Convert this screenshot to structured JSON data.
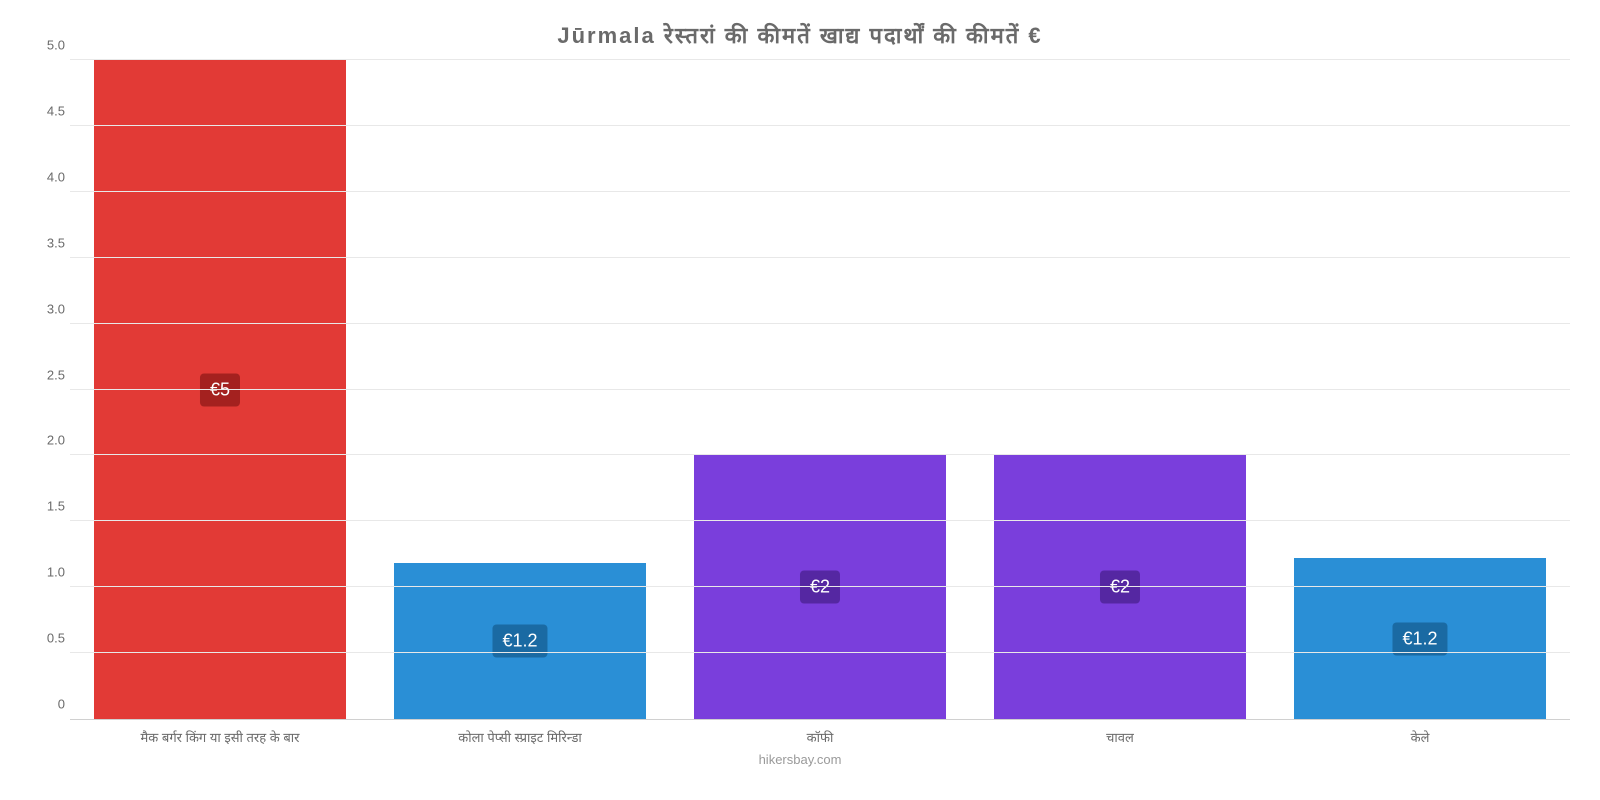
{
  "chart": {
    "type": "bar",
    "title": "Jūrmala रेस्तरां की कीमतें खाद्य पदार्थों की कीमतें €",
    "title_fontsize": 22,
    "title_color": "#6a6a6a",
    "background_color": "#ffffff",
    "grid_color": "#e8e8e8",
    "axis_text_color": "#6a6a6a",
    "ylim": [
      0,
      5.0
    ],
    "ytick_step": 0.5,
    "yticks": [
      "0",
      "0.5",
      "1.0",
      "1.5",
      "2.0",
      "2.5",
      "3.0",
      "3.5",
      "4.0",
      "4.5",
      "5.0"
    ],
    "bar_width_pct": 84,
    "categories": [
      "मैक बर्गर किंग या इसी तरह के बार",
      "कोला पेप्सी स्प्राइट मिरिन्डा",
      "कॉफी",
      "चावल",
      "केले"
    ],
    "values": [
      5.0,
      1.18,
      2.0,
      2.0,
      1.22
    ],
    "value_labels": [
      "€5",
      "€1.2",
      "€2",
      "€2",
      "€1.2"
    ],
    "bar_colors": [
      "#e23a36",
      "#2a8fd6",
      "#7a3edc",
      "#7a3edc",
      "#2a8fd6"
    ],
    "label_bg_colors": [
      "#a4211f",
      "#1a6aa3",
      "#5527a2",
      "#5527a2",
      "#1a6aa3"
    ],
    "label_fontsize": 18,
    "xlabel_fontsize": 13,
    "footer_text": "hikersbay.com",
    "footer_color": "#9a9a9a"
  }
}
